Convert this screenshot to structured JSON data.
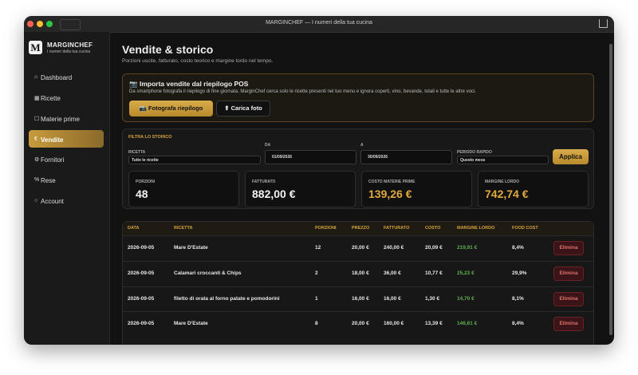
{
  "window_title": "MARGINCHEF — I numeri della tua cucina",
  "brand": {
    "logo": "M",
    "name": "MARGINCHEF",
    "tagline": "I numeri della tua cucina"
  },
  "nav": [
    {
      "icon": "⌂",
      "label": "Dashboard"
    },
    {
      "icon": "▦",
      "label": "Ricette"
    },
    {
      "icon": "☐",
      "label": "Materie prime"
    },
    {
      "icon": "€",
      "label": "Vendite",
      "active": true
    },
    {
      "icon": "⚙",
      "label": "Fornitori"
    },
    {
      "icon": "%",
      "label": "Rese"
    },
    {
      "icon": "○",
      "label": "Account"
    }
  ],
  "header": {
    "title": "Vendite & storico",
    "subtitle": "Porzioni uscite, fatturato, costo teorico e margine lordo nel tempo."
  },
  "import": {
    "icon": "📷",
    "title": "Importa vendite dal riepilogo POS",
    "description": "Da smartphone fotografa il riepilogo di fine giornata. MarginChef cerca solo le ricette presenti nel tuo menu e ignora coperti, vino, bevande, totali e tutte le altre voci.",
    "buttons": [
      {
        "icon": "📷",
        "label": "Fotografa riepilogo"
      },
      {
        "icon": "⬆",
        "label": "Carica foto"
      }
    ]
  },
  "filter": {
    "title": "FILTRA LO STORICO",
    "fields": [
      {
        "label": "RICETTA",
        "value": "Tutte le ricette"
      },
      {
        "label": "DA",
        "value": "01/09/2026"
      },
      {
        "label": "A",
        "value": "30/09/2026"
      },
      {
        "label": "PERIODO RAPIDO",
        "value": "Questo mese"
      }
    ],
    "apply": "Applica"
  },
  "stats": [
    {
      "label": "PORZIONI",
      "value": "48"
    },
    {
      "label": "FATTURATO",
      "value": "882,00 €"
    },
    {
      "label": "COSTO MATERIE PRIME",
      "value": "139,26 €"
    },
    {
      "label": "MARGINE LORDO",
      "value": "742,74 €"
    }
  ],
  "table": {
    "headers": [
      "DATA",
      "RICETTA",
      "PORZIONI",
      "PREZZO",
      "FATTURATO",
      "COSTO",
      "MARGINE LORDO",
      "FOOD COST"
    ],
    "action_label": "Elimina",
    "rows": [
      [
        "2026-09-05",
        "Mare D'Estate",
        "12",
        "20,00 €",
        "240,00 €",
        "20,09 €",
        "219,91 €",
        "8,4%"
      ],
      [
        "2026-09-05",
        "Calamari croccanti & Chips",
        "2",
        "18,00 €",
        "36,00 €",
        "10,77 €",
        "25,23 €",
        "29,9%"
      ],
      [
        "2026-09-05",
        "filetto di orata al forno patate e pomodorini",
        "1",
        "16,00 €",
        "16,00 €",
        "1,30 €",
        "14,70 €",
        "8,1%"
      ],
      [
        "2026-09-05",
        "Mare D'Estate",
        "8",
        "20,00 €",
        "160,00 €",
        "13,39 €",
        "146,61 €",
        "8,4%"
      ]
    ]
  }
}
